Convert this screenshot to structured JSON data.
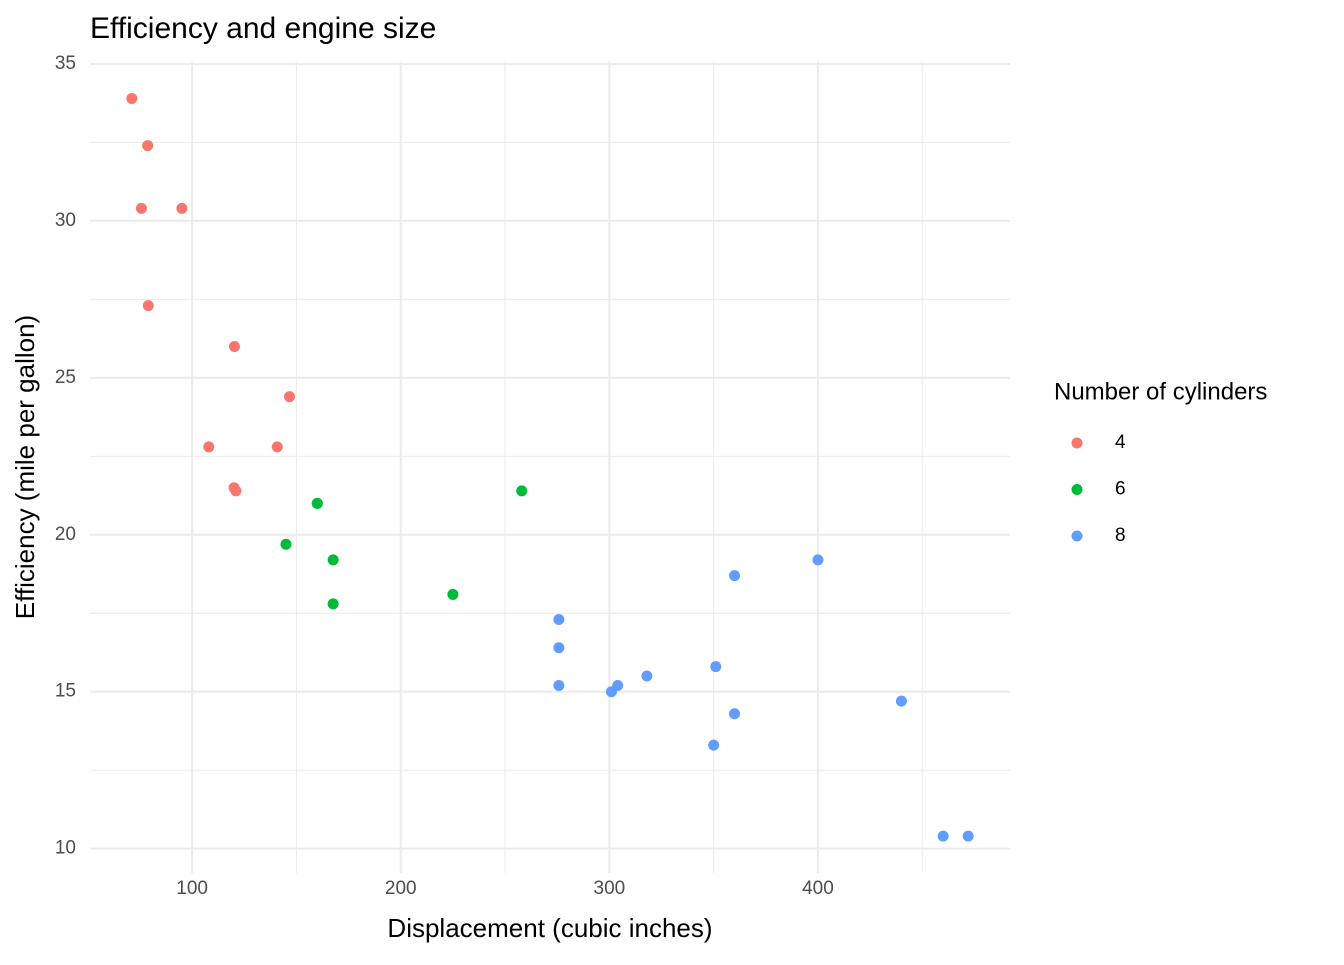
{
  "chart_data": {
    "type": "scatter",
    "title": "Efficiency and engine size",
    "x_label": "Displacement (cubic inches)",
    "y_label": "Efficiency (mile per gallon)",
    "legend_title": "Number of cylinders",
    "xlim": [
      51.055,
      492.045
    ],
    "ylim": [
      9.225,
      35.075
    ],
    "xticks": [
      100,
      200,
      300,
      400
    ],
    "yticks": [
      10,
      15,
      20,
      25,
      30,
      35
    ],
    "grid": true,
    "legend": "right",
    "series": [
      {
        "name": "4",
        "color": "#F8766D",
        "x": [
          108,
          146.7,
          140.8,
          78.7,
          75.7,
          71.1,
          120.1,
          79,
          120.3,
          95.1,
          121
        ],
        "values": [
          22.8,
          24.4,
          22.8,
          32.4,
          30.4,
          33.9,
          21.5,
          27.3,
          26,
          30.4,
          21.4
        ]
      },
      {
        "name": "6",
        "color": "#00BA38",
        "x": [
          160,
          160,
          258,
          225,
          167.6,
          167.6,
          145
        ],
        "values": [
          21,
          21,
          21.4,
          18.1,
          19.2,
          17.8,
          19.7
        ]
      },
      {
        "name": "8",
        "color": "#619CFF",
        "x": [
          360,
          360,
          275.8,
          275.8,
          275.8,
          472,
          460,
          440,
          318,
          304,
          350,
          400,
          351,
          301
        ],
        "values": [
          18.7,
          14.3,
          16.4,
          17.3,
          15.2,
          10.4,
          10.4,
          14.7,
          15.5,
          15.2,
          13.3,
          19.2,
          15.8,
          15
        ]
      }
    ]
  }
}
